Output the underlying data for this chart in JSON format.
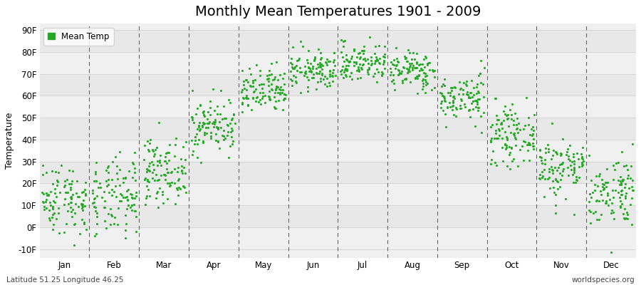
{
  "title": "Monthly Mean Temperatures 1901 - 2009",
  "ylabel": "Temperature",
  "xlabel_labels": [
    "Jan",
    "Feb",
    "Mar",
    "Apr",
    "May",
    "Jun",
    "Jul",
    "Aug",
    "Sep",
    "Oct",
    "Nov",
    "Dec"
  ],
  "ytick_labels": [
    "-10F",
    "0F",
    "10F",
    "20F",
    "30F",
    "40F",
    "50F",
    "60F",
    "70F",
    "80F",
    "90F"
  ],
  "ytick_values": [
    -10,
    0,
    10,
    20,
    30,
    40,
    50,
    60,
    70,
    80,
    90
  ],
  "ylim": [
    -14,
    93
  ],
  "dot_color": "#22aa22",
  "fig_bg_color": "#ffffff",
  "plot_bg_color": "#ffffff",
  "band_colors": [
    "#f0f0f0",
    "#e8e8e8"
  ],
  "title_fontsize": 14,
  "axis_label_fontsize": 9,
  "tick_fontsize": 8.5,
  "footer_left": "Latitude 51.25 Longitude 46.25",
  "footer_right": "worldspecies.org",
  "legend_label": "Mean Temp",
  "num_years": 109,
  "monthly_means_C": [
    -10.5,
    -10.5,
    -3.5,
    8.0,
    16.5,
    22.0,
    24.0,
    22.0,
    15.0,
    5.5,
    -2.5,
    -8.5
  ],
  "monthly_stds_C": [
    4.5,
    5.0,
    4.0,
    3.5,
    3.0,
    2.5,
    2.5,
    2.5,
    3.0,
    3.5,
    4.0,
    4.5
  ],
  "random_seed": 42
}
